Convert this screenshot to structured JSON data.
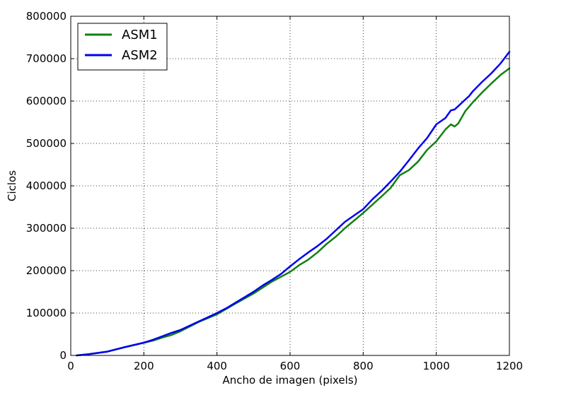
{
  "chart_data": {
    "type": "line",
    "title": "",
    "xlabel": "Ancho de imagen (pixels)",
    "ylabel": "Ciclos",
    "xlim": [
      0,
      1200
    ],
    "ylim": [
      0,
      800000
    ],
    "xticks": [
      0,
      200,
      400,
      600,
      800,
      1000,
      1200
    ],
    "yticks": [
      0,
      100000,
      200000,
      300000,
      400000,
      500000,
      600000,
      700000,
      800000
    ],
    "grid": true,
    "legend_position": "top-left",
    "series": [
      {
        "name": "ASM1",
        "color": "#118011",
        "x": [
          16,
          50,
          100,
          150,
          200,
          225,
          250,
          275,
          300,
          350,
          400,
          450,
          500,
          525,
          550,
          600,
          625,
          650,
          675,
          700,
          725,
          750,
          800,
          850,
          875,
          900,
          925,
          950,
          975,
          1000,
          1025,
          1040,
          1050,
          1060,
          1080,
          1100,
          1125,
          1150,
          1175,
          1200
        ],
        "values": [
          0,
          3000,
          9000,
          20000,
          30000,
          35000,
          42000,
          48000,
          57000,
          79000,
          97000,
          122000,
          146000,
          160000,
          174000,
          197000,
          213000,
          226000,
          243000,
          263000,
          280000,
          300000,
          336000,
          375000,
          395000,
          425000,
          437000,
          457000,
          485000,
          505000,
          533000,
          545000,
          540000,
          547000,
          577000,
          597000,
          620000,
          641000,
          661000,
          677000
        ]
      },
      {
        "name": "ASM2",
        "color": "#0000ee",
        "x": [
          16,
          50,
          100,
          150,
          200,
          225,
          250,
          275,
          300,
          350,
          375,
          400,
          425,
          450,
          475,
          500,
          525,
          550,
          575,
          600,
          625,
          650,
          675,
          700,
          725,
          750,
          775,
          800,
          825,
          850,
          875,
          900,
          925,
          950,
          975,
          1000,
          1025,
          1040,
          1050,
          1060,
          1075,
          1090,
          1100,
          1125,
          1150,
          1175,
          1200
        ],
        "values": [
          0,
          3000,
          9000,
          20000,
          30000,
          37000,
          45000,
          53000,
          60000,
          80000,
          90000,
          100000,
          111000,
          124000,
          137000,
          150000,
          165000,
          178000,
          192000,
          210000,
          227000,
          243000,
          258000,
          275000,
          295000,
          315000,
          330000,
          345000,
          368000,
          388000,
          410000,
          433000,
          460000,
          488000,
          513000,
          545000,
          560000,
          578000,
          580000,
          588000,
          600000,
          612000,
          623000,
          645000,
          665000,
          688000,
          716000
        ]
      }
    ]
  }
}
